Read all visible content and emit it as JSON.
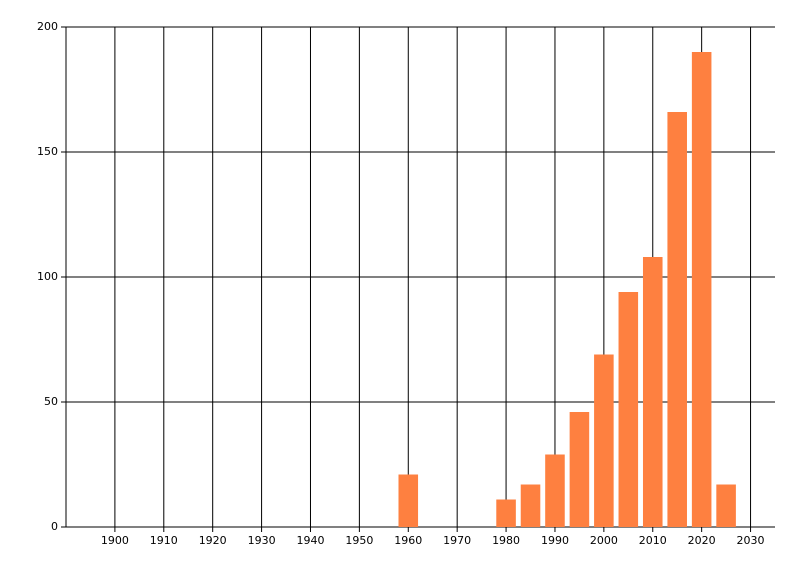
{
  "chart_data": {
    "type": "bar",
    "x": [
      1960,
      1980,
      1985,
      1990,
      1995,
      2000,
      2005,
      2010,
      2015,
      2020,
      2025
    ],
    "values": [
      21,
      11,
      17,
      29,
      46,
      69,
      94,
      108,
      166,
      190,
      17
    ],
    "color": "#fe8040",
    "xlim": [
      1890,
      2035
    ],
    "xticks": [
      1900,
      1910,
      1920,
      1930,
      1940,
      1950,
      1960,
      1970,
      1980,
      1990,
      2000,
      2010,
      2020,
      2030
    ],
    "ylim": [
      0,
      200
    ],
    "yticks": [
      0,
      50,
      100,
      150,
      200
    ],
    "grid": true
  }
}
